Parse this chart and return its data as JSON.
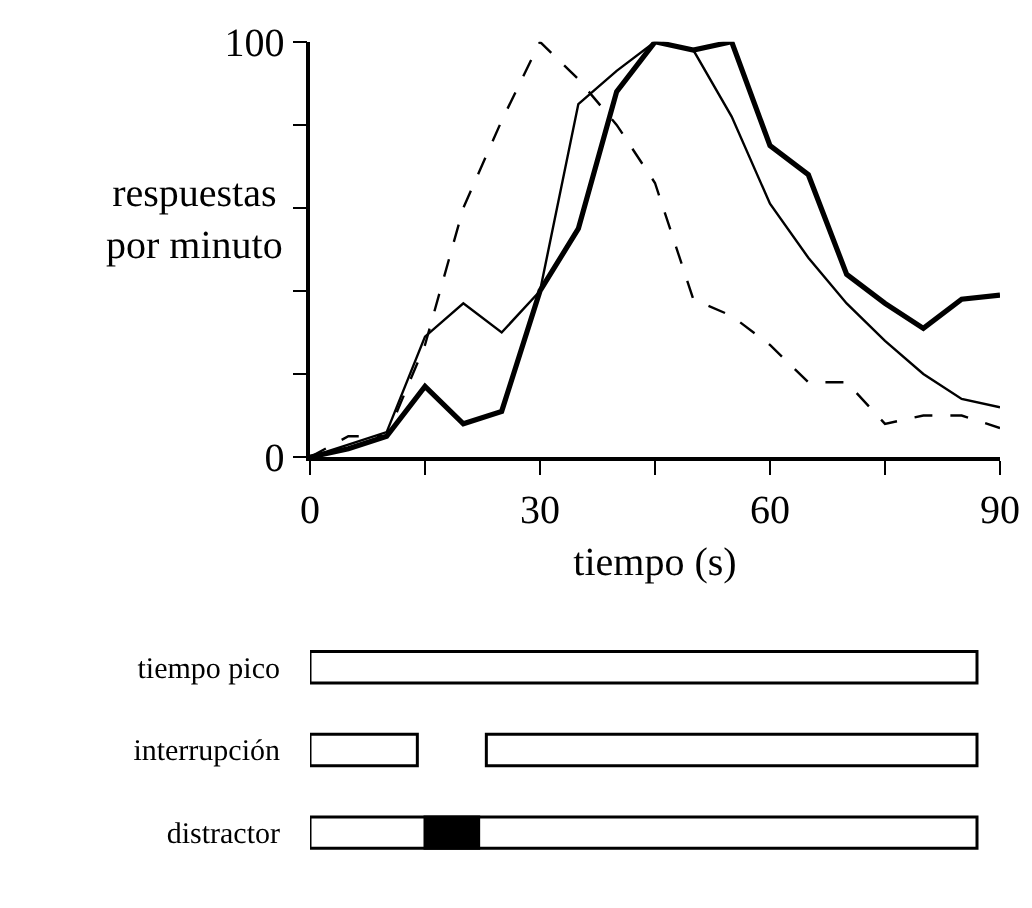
{
  "chart_data": [
    {
      "type": "line",
      "xlabel": "tiempo (s)",
      "ylabel": "respuestas por minuto",
      "x": [
        0,
        5,
        10,
        15,
        20,
        25,
        30,
        35,
        40,
        45,
        50,
        55,
        60,
        65,
        70,
        75,
        80,
        85,
        90
      ],
      "xlim": [
        0,
        90
      ],
      "xticks": [
        0,
        {
          "value": 15,
          "label": null
        },
        30,
        {
          "value": 45,
          "label": null
        },
        60,
        {
          "value": 75,
          "label": null
        },
        90
      ],
      "ylim": [
        0,
        100
      ],
      "yticks": [
        0,
        {
          "value": 20,
          "label": null
        },
        {
          "value": 40,
          "label": null
        },
        {
          "value": 60,
          "label": null
        },
        {
          "value": 80,
          "label": null
        },
        100
      ],
      "marker": "none",
      "series": [
        {
          "color": "#000000",
          "line_style": "solid",
          "values": [
            0,
            2,
            5,
            17,
            8,
            11,
            40,
            55,
            88,
            100,
            98,
            100,
            75,
            68,
            44,
            37,
            31,
            38,
            39
          ]
        },
        {
          "color": "#000000",
          "line_style": "solid",
          "values": [
            0,
            3,
            6,
            29,
            37,
            30,
            40,
            85,
            93,
            100,
            98,
            82,
            61,
            48,
            37,
            28,
            20,
            14,
            12
          ]
        },
        {
          "color": "#000000",
          "line_style": "dashed",
          "values": [
            0,
            5,
            5,
            27,
            60,
            81,
            100,
            91,
            80,
            66,
            38,
            34,
            27,
            18,
            18,
            8,
            10,
            10,
            7
          ]
        }
      ]
    },
    {
      "type": "bar",
      "orientation": "horizontal",
      "categories": [
        "tiempo pico",
        "interrupción",
        "distractor"
      ],
      "xlim": [
        0,
        90
      ],
      "tick_labels": "y",
      "series": [
        {
          "color": "#ffffff",
          "values": [
            87,
            14,
            87
          ],
          "base": [
            0,
            0,
            0
          ]
        },
        {
          "color": "#ffffff",
          "values": [
            null,
            64,
            null
          ],
          "base": [
            null,
            23,
            null
          ]
        },
        {
          "color": "#000000",
          "values": [
            null,
            null,
            7
          ],
          "base": [
            null,
            null,
            15
          ]
        }
      ]
    }
  ]
}
